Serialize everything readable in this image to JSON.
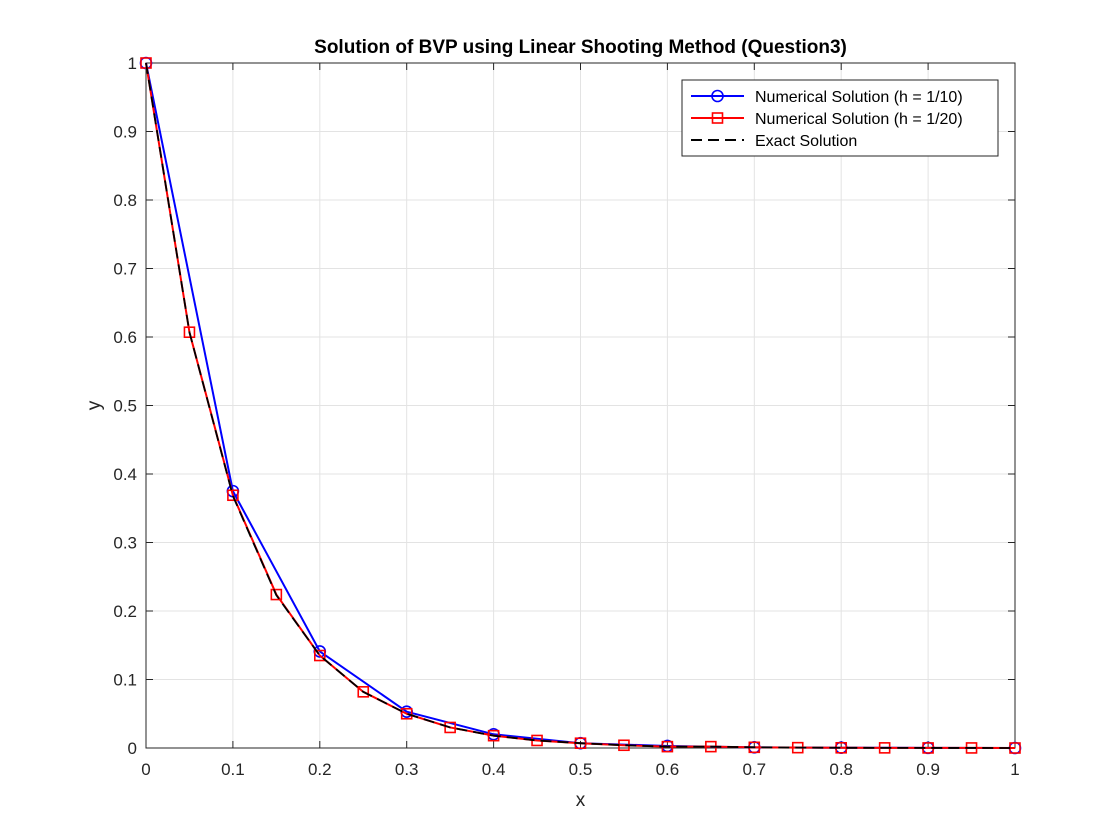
{
  "chart_data": {
    "type": "line",
    "title": "Solution of BVP using Linear Shooting Method (Question3)",
    "xlabel": "x",
    "ylabel": "y",
    "xlim": [
      0,
      1
    ],
    "ylim": [
      0,
      1
    ],
    "xticks": [
      "0",
      "0.1",
      "0.2",
      "0.3",
      "0.4",
      "0.5",
      "0.6",
      "0.7",
      "0.8",
      "0.9",
      "1"
    ],
    "yticks": [
      "0",
      "0.1",
      "0.2",
      "0.3",
      "0.4",
      "0.5",
      "0.6",
      "0.7",
      "0.8",
      "0.9",
      "1"
    ],
    "grid": true,
    "legend_position": "top-right",
    "series": [
      {
        "name": "Numerical Solution (h = 1/10)",
        "color": "#0000ff",
        "marker": "circle",
        "line_style": "solid",
        "x": [
          0,
          0.1,
          0.2,
          0.3,
          0.4,
          0.5,
          0.6,
          0.7,
          0.8,
          0.9,
          1.0
        ],
        "y": [
          1.0,
          0.375,
          0.141,
          0.053,
          0.02,
          0.007,
          0.003,
          0.001,
          0.0004,
          0.0002,
          0.0
        ]
      },
      {
        "name": "Numerical Solution (h = 1/20)",
        "color": "#ff0000",
        "marker": "square",
        "line_style": "solid",
        "x": [
          0,
          0.05,
          0.1,
          0.15,
          0.2,
          0.25,
          0.3,
          0.35,
          0.4,
          0.45,
          0.5,
          0.55,
          0.6,
          0.65,
          0.7,
          0.75,
          0.8,
          0.85,
          0.9,
          0.95,
          1.0
        ],
        "y": [
          1.0,
          0.607,
          0.369,
          0.224,
          0.135,
          0.082,
          0.05,
          0.03,
          0.018,
          0.011,
          0.007,
          0.004,
          0.002,
          0.002,
          0.001,
          0.0005,
          0.0003,
          0.0002,
          0.0001,
          0.0001,
          0.0
        ]
      },
      {
        "name": "Exact Solution",
        "color": "#000000",
        "marker": "none",
        "line_style": "dashed",
        "x": [
          0,
          0.05,
          0.1,
          0.15,
          0.2,
          0.25,
          0.3,
          0.35,
          0.4,
          0.45,
          0.5,
          0.55,
          0.6,
          0.65,
          0.7,
          0.75,
          0.8,
          0.85,
          0.9,
          0.95,
          1.0
        ],
        "y": [
          1.0,
          0.607,
          0.368,
          0.223,
          0.135,
          0.082,
          0.05,
          0.03,
          0.018,
          0.011,
          0.007,
          0.004,
          0.002,
          0.002,
          0.001,
          0.0006,
          0.0003,
          0.0002,
          0.0001,
          0.0001,
          0.0
        ]
      }
    ]
  }
}
